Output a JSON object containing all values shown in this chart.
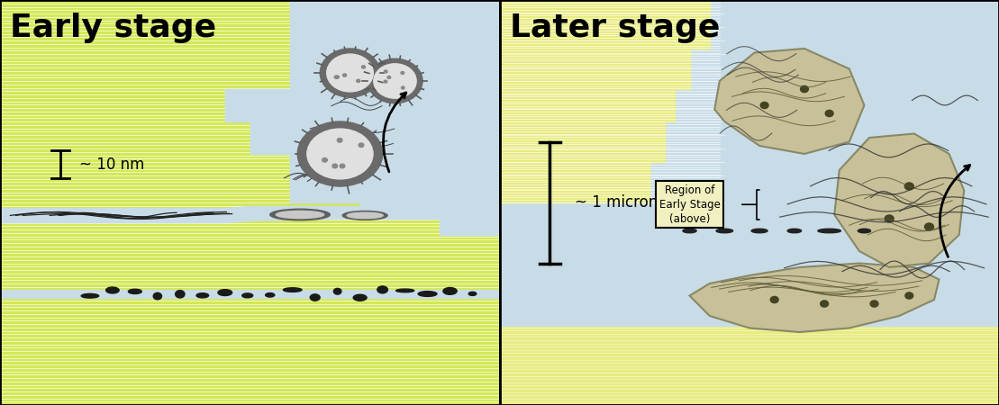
{
  "fig_width": 11.09,
  "fig_height": 4.5,
  "dpi": 100,
  "bg_color": "#ffffff",
  "mica_yellow_left": "#d4e857",
  "mica_yellow_right": "#e8ec82",
  "light_blue": "#c8dce8",
  "cell_gray_outer": "#7a7a7a",
  "cell_gray_inner": "#d8d8d8",
  "cell_tan": "#c8c08a",
  "cell_tan_border": "#9a9070",
  "dark_matter": "#2a2a2a",
  "left_title": "Early stage",
  "right_title": "Later stage",
  "title_fontsize": 26,
  "scale_left": "~ 10 nm",
  "scale_right": "~ 1 micron",
  "annotation": "Region of\nEarly Stage\n(above)"
}
